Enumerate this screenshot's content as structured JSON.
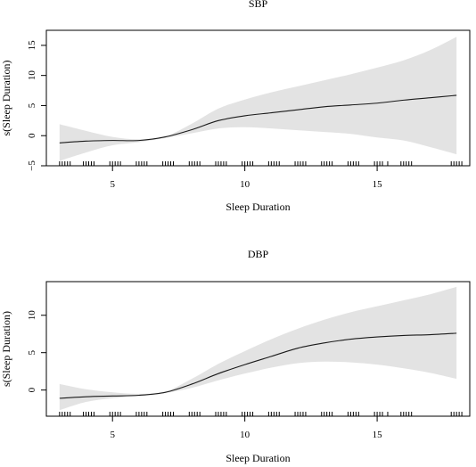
{
  "chart_data": [
    {
      "type": "line",
      "title": "SBP",
      "xlabel": "Sleep Duration",
      "ylabel": "s(Sleep Duration)",
      "xlim": [
        2.5,
        18.5
      ],
      "ylim": [
        -5,
        17.5
      ],
      "xticks": [
        5,
        10,
        15
      ],
      "yticks": [
        -5,
        0,
        5,
        10,
        15
      ],
      "series": [
        {
          "x": [
            3,
            4,
            5,
            6,
            7,
            8,
            9,
            10,
            11,
            12,
            13,
            14,
            15,
            16,
            17,
            18
          ],
          "y": [
            -1.2,
            -0.9,
            -0.8,
            -0.8,
            -0.2,
            1.0,
            2.5,
            3.3,
            3.8,
            4.3,
            4.8,
            5.1,
            5.4,
            5.9,
            6.3,
            6.7
          ]
        }
      ],
      "ci_upper": [
        1.9,
        0.8,
        -0.2,
        -0.6,
        -0.1,
        2.0,
        4.5,
        6.0,
        7.2,
        8.2,
        9.2,
        10.2,
        11.3,
        12.5,
        14.2,
        16.4
      ],
      "ci_lower": [
        -4.2,
        -2.8,
        -1.6,
        -1.1,
        -0.4,
        0.4,
        1.2,
        1.4,
        1.2,
        0.9,
        0.6,
        0.3,
        -0.3,
        -0.8,
        -1.9,
        -3.1
      ],
      "rug_x": [
        3.0,
        3.1,
        3.2,
        3.3,
        3.4,
        3.9,
        4.0,
        4.1,
        4.2,
        4.3,
        4.9,
        5.0,
        5.1,
        5.2,
        5.3,
        5.9,
        6.0,
        6.1,
        6.2,
        6.3,
        6.9,
        7.0,
        7.1,
        7.2,
        7.3,
        7.9,
        8.0,
        8.1,
        8.2,
        8.3,
        8.9,
        9.0,
        9.1,
        9.2,
        9.3,
        9.9,
        10.0,
        10.1,
        10.2,
        10.3,
        10.9,
        11.0,
        11.1,
        11.2,
        11.3,
        11.9,
        12.0,
        12.1,
        12.2,
        12.3,
        12.9,
        13.0,
        13.1,
        13.2,
        13.3,
        13.9,
        14.0,
        14.1,
        14.2,
        14.3,
        14.9,
        15.0,
        15.1,
        15.2,
        15.4,
        15.9,
        16.0,
        16.1,
        16.2,
        16.3,
        17.8,
        17.9,
        18.0,
        18.1,
        18.2
      ]
    },
    {
      "type": "line",
      "title": "DBP",
      "xlabel": "Sleep Duration",
      "ylabel": "s(Sleep Duration)",
      "xlim": [
        2.5,
        18.5
      ],
      "ylim": [
        -3.5,
        14.5
      ],
      "xticks": [
        5,
        10,
        15
      ],
      "yticks": [
        0,
        5,
        10
      ],
      "series": [
        {
          "x": [
            3,
            4,
            5,
            6,
            7,
            8,
            9,
            10,
            11,
            12,
            13,
            14,
            15,
            16,
            17,
            18
          ],
          "y": [
            -1.1,
            -0.9,
            -0.8,
            -0.7,
            -0.3,
            0.8,
            2.2,
            3.4,
            4.5,
            5.6,
            6.3,
            6.8,
            7.1,
            7.3,
            7.4,
            7.6
          ]
        }
      ],
      "ci_upper": [
        0.8,
        0.1,
        -0.3,
        -0.5,
        -0.2,
        1.5,
        3.5,
        5.2,
        6.8,
        8.2,
        9.4,
        10.4,
        11.2,
        12.0,
        12.8,
        13.8
      ],
      "ci_lower": [
        -2.7,
        -1.6,
        -1.1,
        -0.8,
        -0.4,
        0.3,
        1.3,
        2.2,
        3.0,
        3.6,
        3.8,
        3.7,
        3.4,
        2.9,
        2.3,
        1.5
      ],
      "rug_x": [
        3.0,
        3.1,
        3.2,
        3.3,
        3.4,
        3.9,
        4.0,
        4.1,
        4.2,
        4.3,
        4.9,
        5.0,
        5.1,
        5.2,
        5.3,
        5.9,
        6.0,
        6.1,
        6.2,
        6.3,
        6.9,
        7.0,
        7.1,
        7.2,
        7.3,
        7.9,
        8.0,
        8.1,
        8.2,
        8.3,
        8.9,
        9.0,
        9.1,
        9.2,
        9.3,
        9.9,
        10.0,
        10.1,
        10.2,
        10.3,
        10.9,
        11.0,
        11.1,
        11.2,
        11.3,
        11.9,
        12.0,
        12.1,
        12.2,
        12.3,
        12.9,
        13.0,
        13.1,
        13.2,
        13.3,
        13.9,
        14.0,
        14.1,
        14.2,
        14.3,
        14.9,
        15.0,
        15.1,
        15.2,
        15.4,
        15.9,
        16.0,
        16.1,
        16.2,
        16.3,
        17.8,
        17.9,
        18.0,
        18.1,
        18.2
      ]
    }
  ]
}
